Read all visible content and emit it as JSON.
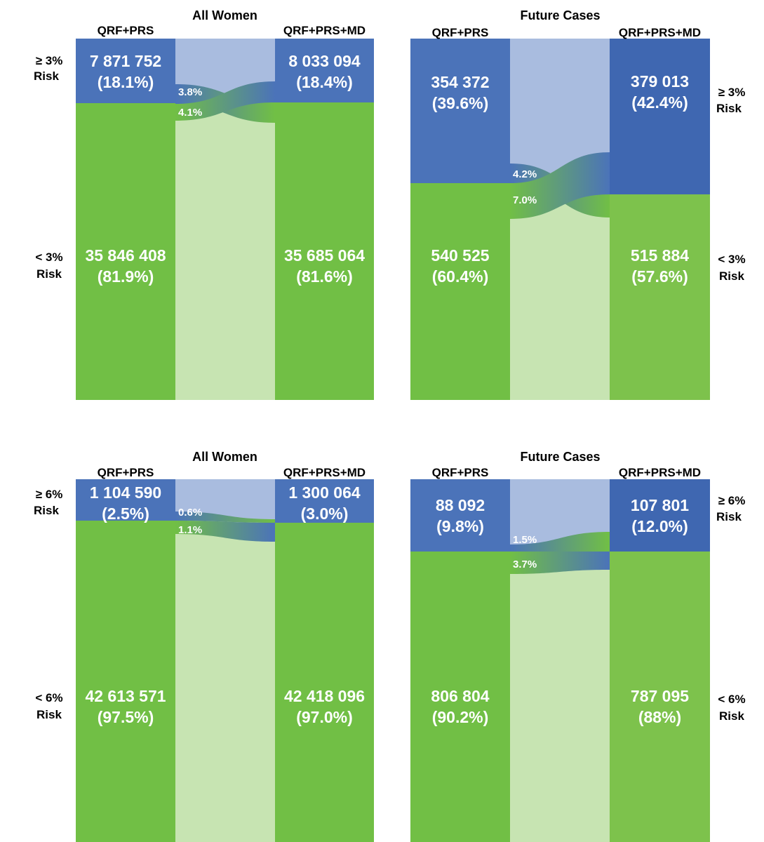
{
  "colors": {
    "blue": "#4b73b9",
    "blue_alt": "#3f67b1",
    "green": "#71bf45",
    "green_alt": "#7dc24c",
    "light_blue": "#a9bcdf",
    "light_green": "#c7e4b2"
  },
  "chart_data": [
    {
      "type": "sankey",
      "title": "All Women",
      "left_label": "QRF+PRS",
      "right_label": "QRF+PRS+MD",
      "high_label": "≥ 3%",
      "low_label": "< 3%",
      "risk_word": "Risk",
      "left": {
        "high_count": "7 871 752",
        "high_pct": "(18.1%)",
        "high_share": 0.181,
        "low_count": "35 846 408",
        "low_pct": "(81.9%)",
        "low_share": 0.819
      },
      "right": {
        "high_count": "8 033 094",
        "high_pct": "(18.4%)",
        "high_share": 0.184,
        "low_count": "35 685 064",
        "low_pct": "(81.6%)",
        "low_share": 0.816
      },
      "flows": {
        "high_to_low": "3.8%",
        "high_to_low_value": 3.8,
        "low_to_high": "4.1%",
        "low_to_high_value": 4.1
      }
    },
    {
      "type": "sankey",
      "title": "Future Cases",
      "left_label": "QRF+PRS",
      "right_label": "QRF+PRS+MD",
      "high_label": "≥ 3%",
      "low_label": "< 3%",
      "risk_word": "Risk",
      "left": {
        "high_count": "354 372",
        "high_pct": "(39.6%)",
        "high_share": 0.396,
        "low_count": "540 525",
        "low_pct": "(60.4%)",
        "low_share": 0.604
      },
      "right": {
        "high_count": "379 013",
        "high_pct": "(42.4%)",
        "high_share": 0.424,
        "low_count": "515 884",
        "low_pct": "(57.6%)",
        "low_share": 0.576
      },
      "flows": {
        "high_to_low": "4.2%",
        "high_to_low_value": 4.2,
        "low_to_high": "7.0%",
        "low_to_high_value": 7.0
      }
    },
    {
      "type": "sankey",
      "title": "All Women",
      "left_label": "QRF+PRS",
      "right_label": "QRF+PRS+MD",
      "high_label": "≥ 6%",
      "low_label": "< 6%",
      "risk_word": "Risk",
      "left": {
        "high_count": "1 104 590",
        "high_pct": "(2.5%)",
        "high_share": 0.025,
        "low_count": "42 613 571",
        "low_pct": "(97.5%)",
        "low_share": 0.975
      },
      "right": {
        "high_count": "1 300 064",
        "high_pct": "(3.0%)",
        "high_share": 0.03,
        "low_count": "42 418 096",
        "low_pct": "(97.0%)",
        "low_share": 0.97
      },
      "flows": {
        "high_to_low": "0.6%",
        "high_to_low_value": 0.6,
        "low_to_high": "1.1%",
        "low_to_high_value": 1.1
      }
    },
    {
      "type": "sankey",
      "title": "Future Cases",
      "left_label": "QRF+PRS",
      "right_label": "QRF+PRS+MD",
      "high_label": "≥ 6%",
      "low_label": "< 6%",
      "risk_word": "Risk",
      "left": {
        "high_count": "88 092",
        "high_pct": "(9.8%)",
        "high_share": 0.098,
        "low_count": "806 804",
        "low_pct": "(90.2%)",
        "low_share": 0.902
      },
      "right": {
        "high_count": "107 801",
        "high_pct": "(12.0%)",
        "high_share": 0.12,
        "low_count": "787 095",
        "low_pct": "(88%)",
        "low_share": 0.88
      },
      "flows": {
        "high_to_low": "1.5%",
        "high_to_low_value": 1.5,
        "low_to_high": "3.7%",
        "low_to_high_value": 3.7
      }
    }
  ]
}
